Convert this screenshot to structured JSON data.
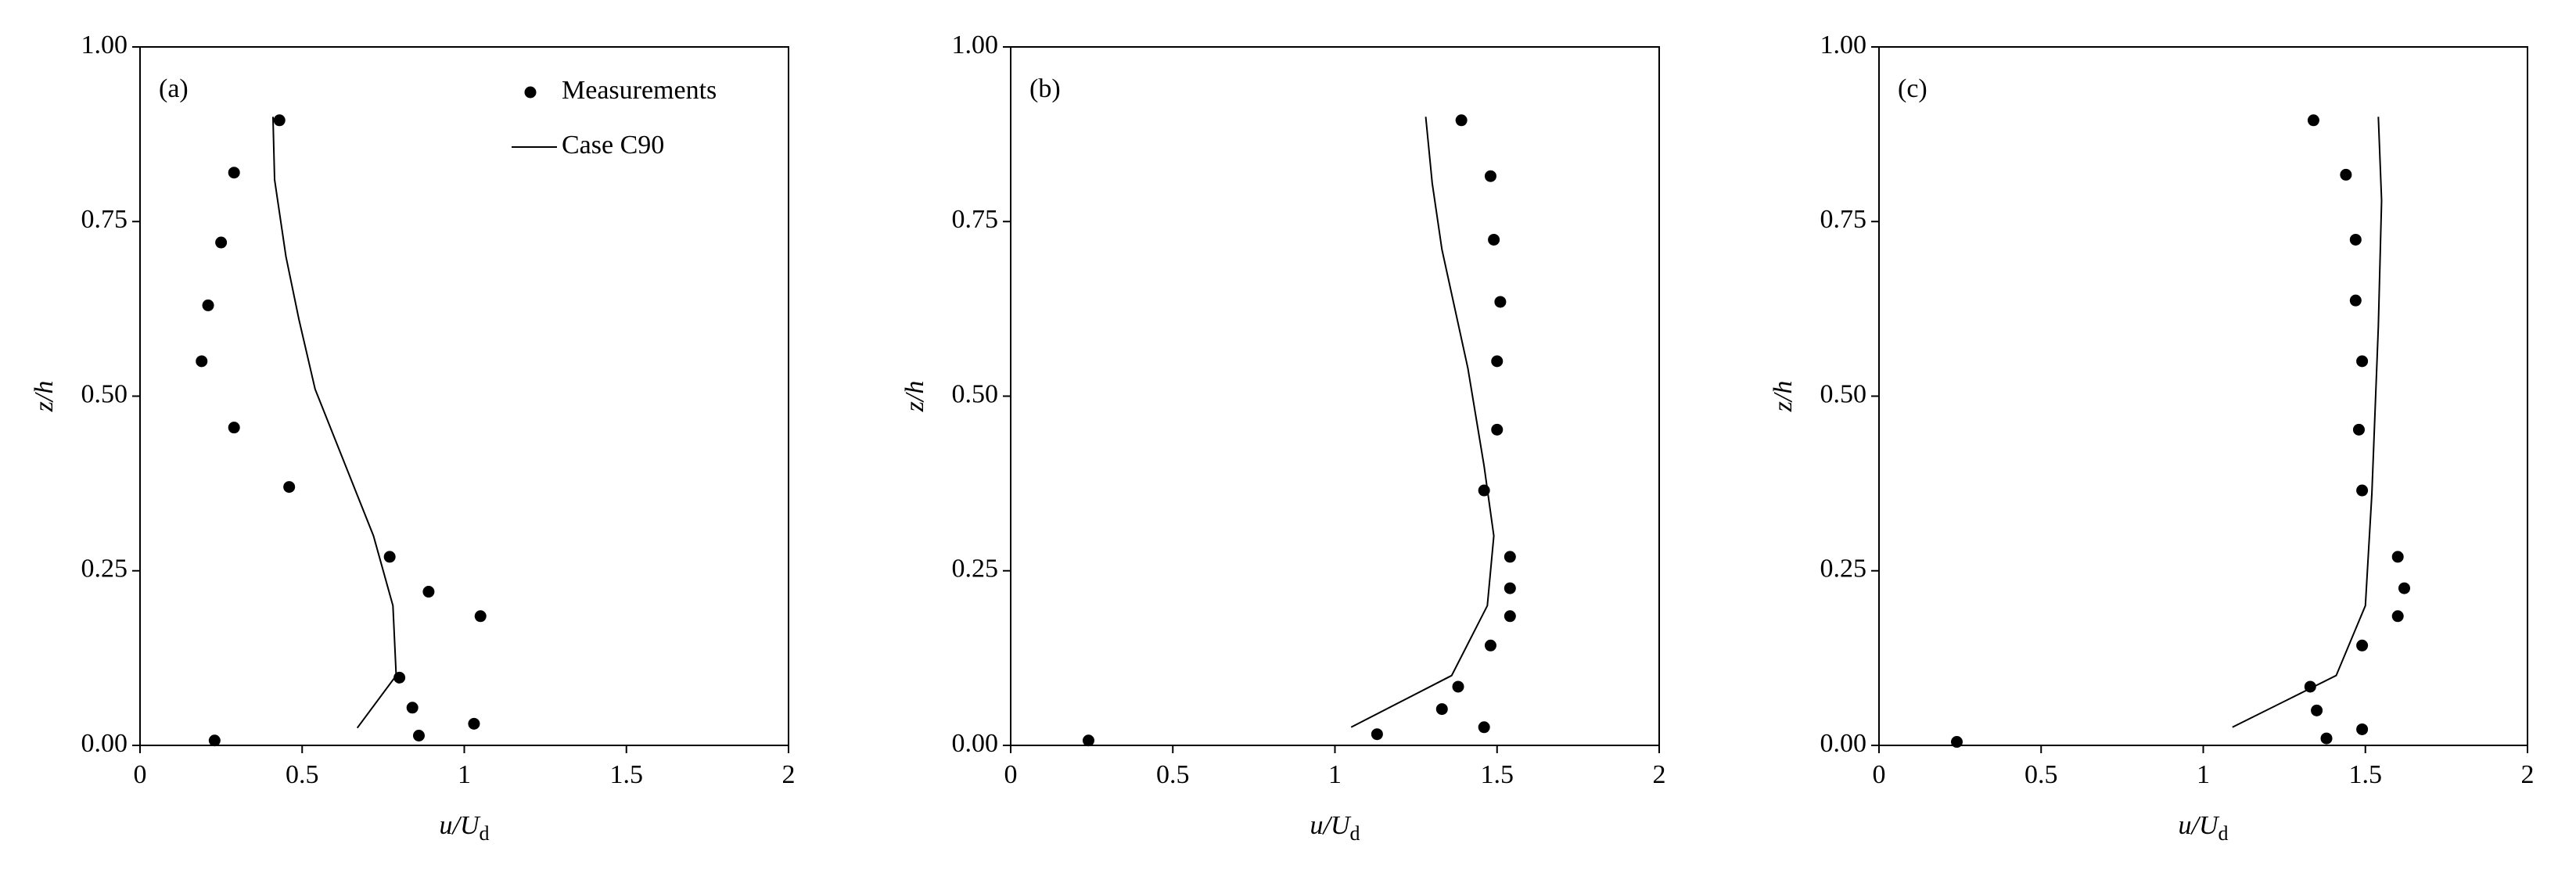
{
  "chart_data": [
    {
      "type": "scatter",
      "label": "(a)",
      "xlabel": "u/U",
      "xlabel_subscript": "d",
      "ylabel": "z/h",
      "xlim": [
        0,
        2
      ],
      "xticks": [
        0,
        0.5,
        1,
        1.5,
        2
      ],
      "ylim": [
        0,
        1
      ],
      "yticks": [
        {
          "value": 0,
          "label": "0.00"
        },
        {
          "value": 0.25,
          "label": "0.25"
        },
        {
          "value": 0.5,
          "label": "0.50"
        },
        {
          "value": 0.75,
          "label": "0.75"
        },
        {
          "value": 1,
          "label": "1.00"
        }
      ],
      "legend": "upper right",
      "series": [
        {
          "name": "Measurements",
          "color": "#000000",
          "style": "markers",
          "x": [
            0.43,
            0.29,
            0.25,
            0.21,
            0.19,
            0.29,
            0.46,
            0.77,
            0.89,
            1.05,
            0.8,
            0.84,
            1.03,
            0.86,
            0.23
          ],
          "values": [
            0.895,
            0.82,
            0.72,
            0.63,
            0.55,
            0.455,
            0.37,
            0.27,
            0.22,
            0.185,
            0.097,
            0.054,
            0.031,
            0.014,
            0.007
          ]
        },
        {
          "name": "Case C90",
          "color": "#000000",
          "style": "line",
          "x": [
            0.41,
            0.415,
            0.45,
            0.49,
            0.54,
            0.72,
            0.78,
            0.79,
            0.67
          ],
          "values": [
            0.9,
            0.81,
            0.7,
            0.61,
            0.51,
            0.3,
            0.2,
            0.1,
            0.025
          ]
        }
      ]
    },
    {
      "type": "scatter",
      "label": "(b)",
      "xlabel": "u/U",
      "xlabel_subscript": "d",
      "ylabel": "z/h",
      "xlim": [
        0,
        2
      ],
      "xticks": [
        0,
        0.5,
        1,
        1.5,
        2
      ],
      "ylim": [
        0,
        1
      ],
      "yticks": [
        {
          "value": 0,
          "label": "0.00"
        },
        {
          "value": 0.25,
          "label": "0.25"
        },
        {
          "value": 0.5,
          "label": "0.50"
        },
        {
          "value": 0.75,
          "label": "0.75"
        },
        {
          "value": 1,
          "label": "1.00"
        }
      ],
      "series": [
        {
          "color": "#000000",
          "style": "markers",
          "x": [
            1.39,
            1.48,
            1.49,
            1.51,
            1.5,
            1.5,
            1.46,
            1.54,
            1.54,
            1.54,
            1.48,
            1.38,
            1.33,
            1.46,
            1.13,
            0.24
          ],
          "values": [
            0.895,
            0.815,
            0.724,
            0.635,
            0.55,
            0.452,
            0.365,
            0.27,
            0.225,
            0.185,
            0.143,
            0.084,
            0.052,
            0.026,
            0.016,
            0.007
          ]
        },
        {
          "color": "#000000",
          "style": "line",
          "x": [
            1.28,
            1.3,
            1.33,
            1.41,
            1.46,
            1.49,
            1.47,
            1.36,
            1.05
          ],
          "values": [
            0.9,
            0.805,
            0.71,
            0.54,
            0.4,
            0.3,
            0.2,
            0.1,
            0.026
          ]
        }
      ]
    },
    {
      "type": "scatter",
      "label": "(c)",
      "xlabel": "u/U",
      "xlabel_subscript": "d",
      "ylabel": "z/h",
      "xlim": [
        0,
        2
      ],
      "xticks": [
        0,
        0.5,
        1,
        1.5,
        2
      ],
      "ylim": [
        0,
        1
      ],
      "yticks": [
        {
          "value": 0,
          "label": "0.00"
        },
        {
          "value": 0.25,
          "label": "0.25"
        },
        {
          "value": 0.5,
          "label": "0.50"
        },
        {
          "value": 0.75,
          "label": "0.75"
        },
        {
          "value": 1,
          "label": "1.00"
        }
      ],
      "series": [
        {
          "color": "#000000",
          "style": "markers",
          "x": [
            1.34,
            1.44,
            1.47,
            1.47,
            1.49,
            1.48,
            1.49,
            1.6,
            1.62,
            1.6,
            1.49,
            1.33,
            1.35,
            1.49,
            1.38,
            0.24
          ],
          "values": [
            0.895,
            0.817,
            0.724,
            0.637,
            0.55,
            0.452,
            0.365,
            0.27,
            0.225,
            0.185,
            0.143,
            0.084,
            0.05,
            0.023,
            0.01,
            0.005
          ]
        },
        {
          "color": "#000000",
          "style": "line",
          "x": [
            1.54,
            1.55,
            1.54,
            1.52,
            1.5,
            1.41,
            1.09
          ],
          "values": [
            0.9,
            0.78,
            0.6,
            0.36,
            0.2,
            0.1,
            0.026
          ]
        }
      ]
    }
  ]
}
